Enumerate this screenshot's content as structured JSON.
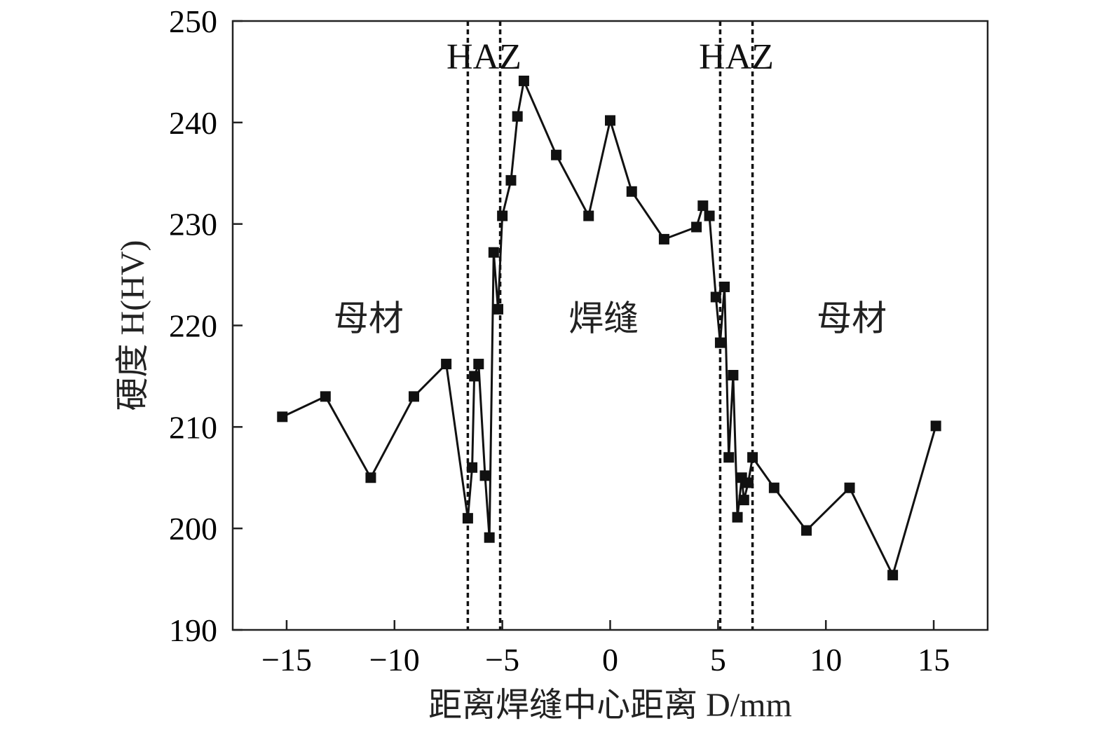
{
  "chart_data": {
    "type": "line",
    "title": "",
    "xlabel": "距离焊缝中心距离 D/mm",
    "ylabel": "硬度 H(HV)",
    "xlim": [
      -17.5,
      17.5
    ],
    "ylim": [
      190,
      250
    ],
    "xticks": [
      -15,
      -10,
      -5,
      0,
      5,
      10,
      15
    ],
    "yticks": [
      190,
      200,
      210,
      220,
      230,
      240,
      250
    ],
    "xtick_labels": [
      "−15",
      "−10",
      "−5",
      "0",
      "5",
      "10",
      "15"
    ],
    "ytick_labels": [
      "190",
      "200",
      "210",
      "220",
      "230",
      "240",
      "250"
    ],
    "grid": false,
    "legend": "none",
    "series": [
      {
        "marker": "square",
        "color": "#111111",
        "points": [
          [
            -15.2,
            211
          ],
          [
            -13.2,
            213
          ],
          [
            -11.1,
            205
          ],
          [
            -9.1,
            213
          ],
          [
            -7.6,
            216.2
          ],
          [
            -6.6,
            201
          ],
          [
            -6.4,
            206
          ],
          [
            -6.3,
            215
          ],
          [
            -6.1,
            216.2
          ],
          [
            -5.8,
            205.2
          ],
          [
            -5.6,
            199.1
          ],
          [
            -5.4,
            227.2
          ],
          [
            -5.2,
            221.6
          ],
          [
            -5.0,
            230.8
          ],
          [
            -4.6,
            234.3
          ],
          [
            -4.3,
            240.6
          ],
          [
            -4.0,
            244.1
          ],
          [
            -2.5,
            236.8
          ],
          [
            -1.0,
            230.8
          ],
          [
            0.0,
            240.2
          ],
          [
            1.0,
            233.2
          ],
          [
            2.5,
            228.5
          ],
          [
            4.0,
            229.7
          ],
          [
            4.3,
            231.8
          ],
          [
            4.6,
            230.8
          ],
          [
            4.9,
            222.8
          ],
          [
            5.1,
            218.3
          ],
          [
            5.3,
            223.8
          ],
          [
            5.5,
            207
          ],
          [
            5.7,
            215.1
          ],
          [
            5.9,
            201.1
          ],
          [
            6.1,
            205
          ],
          [
            6.2,
            202.8
          ],
          [
            6.4,
            204.5
          ],
          [
            6.6,
            207
          ],
          [
            7.6,
            204
          ],
          [
            9.1,
            199.8
          ],
          [
            11.1,
            204
          ],
          [
            13.1,
            195.4
          ],
          [
            15.1,
            210.1
          ]
        ]
      }
    ],
    "boundary_lines_x": [
      -6.6,
      -5.1,
      5.1,
      6.6
    ],
    "annotations": [
      {
        "text": "HAZ",
        "x": -5.85,
        "y": 245.3
      },
      {
        "text": "HAZ",
        "x": 5.85,
        "y": 245.3
      },
      {
        "text": "母材",
        "x": -11.2,
        "y": 219.5
      },
      {
        "text": "焊缝",
        "x": -0.3,
        "y": 219.5
      },
      {
        "text": "母材",
        "x": 11.2,
        "y": 219.5
      }
    ]
  }
}
